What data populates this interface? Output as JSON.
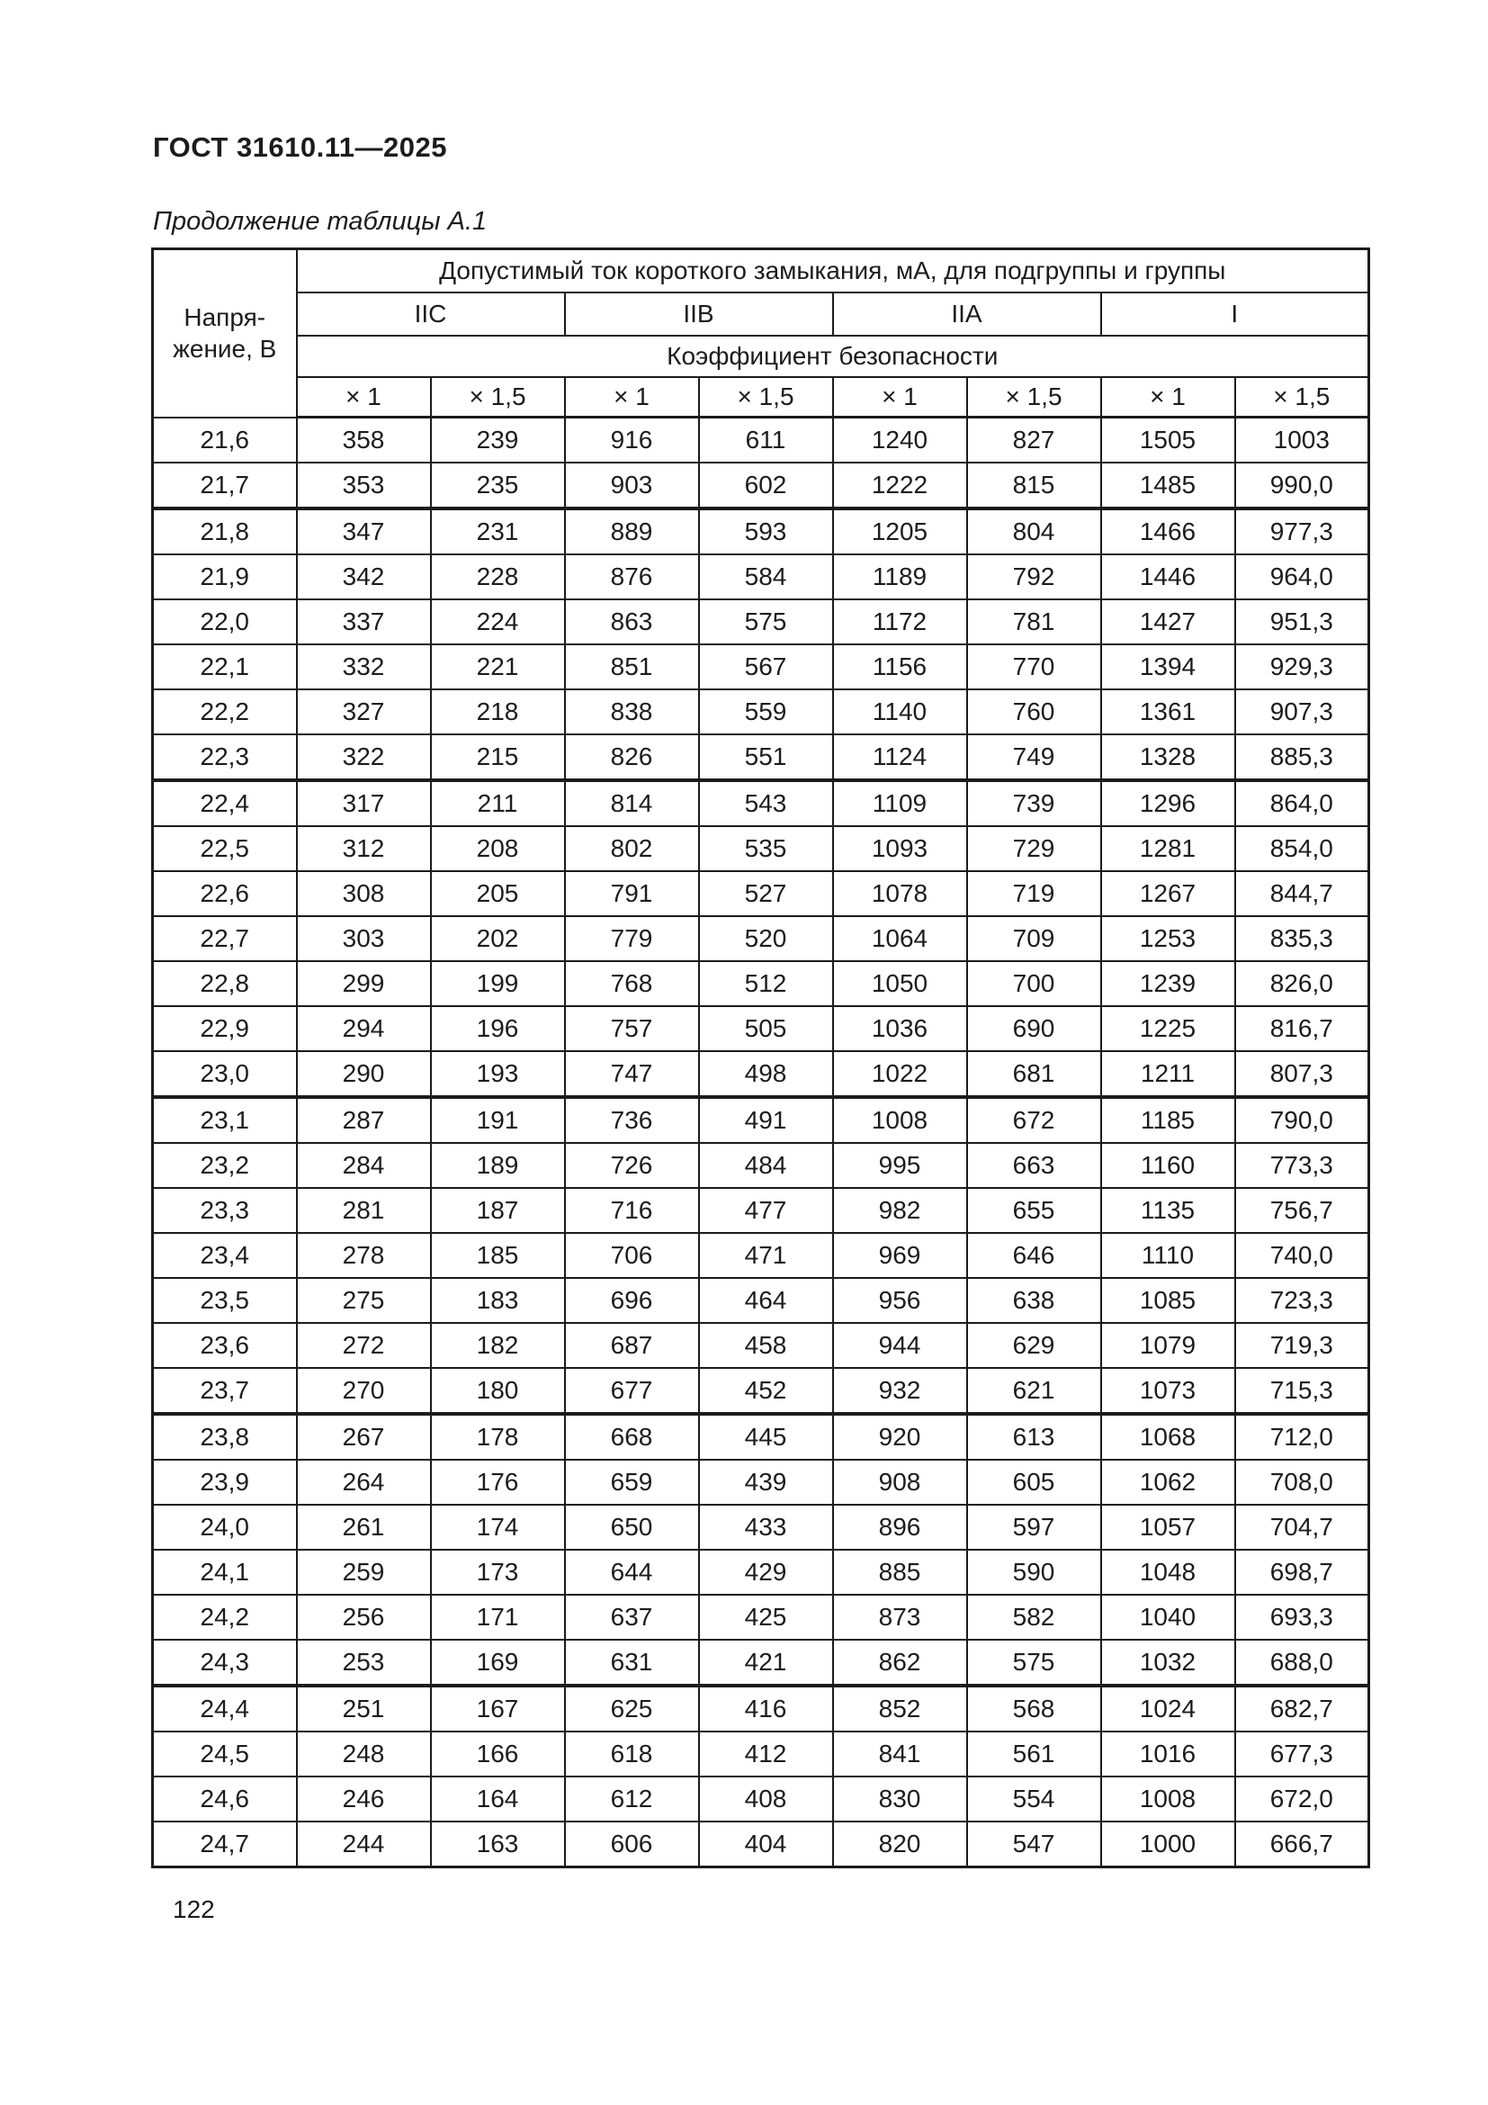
{
  "page": {
    "doc_number": "ГОСТ 31610.11—2025",
    "table_caption": "Продолжение таблицы А.1",
    "page_number": "122"
  },
  "table": {
    "voltage_header_line1": "Напря-",
    "voltage_header_line2": "жение, В",
    "current_header": "Допустимый ток короткого замыкания, мА, для подгруппы и группы",
    "groups": [
      "IIC",
      "IIB",
      "IIA",
      "I"
    ],
    "coefficient_header": "Коэффициент безопасности",
    "factor_labels": [
      "× 1",
      "× 1,5",
      "× 1",
      "× 1,5",
      "× 1",
      "× 1,5",
      "× 1",
      "× 1,5"
    ],
    "rows": [
      {
        "v": "21,6",
        "c": [
          "358",
          "239",
          "916",
          "611",
          "1240",
          "827",
          "1505",
          "1003"
        ]
      },
      {
        "v": "21,7",
        "c": [
          "353",
          "235",
          "903",
          "602",
          "1222",
          "815",
          "1485",
          "990,0"
        ],
        "thick_bottom": true
      },
      {
        "v": "21,8",
        "c": [
          "347",
          "231",
          "889",
          "593",
          "1205",
          "804",
          "1466",
          "977,3"
        ]
      },
      {
        "v": "21,9",
        "c": [
          "342",
          "228",
          "876",
          "584",
          "1189",
          "792",
          "1446",
          "964,0"
        ]
      },
      {
        "v": "22,0",
        "c": [
          "337",
          "224",
          "863",
          "575",
          "1172",
          "781",
          "1427",
          "951,3"
        ]
      },
      {
        "v": "22,1",
        "c": [
          "332",
          "221",
          "851",
          "567",
          "1156",
          "770",
          "1394",
          "929,3"
        ]
      },
      {
        "v": "22,2",
        "c": [
          "327",
          "218",
          "838",
          "559",
          "1140",
          "760",
          "1361",
          "907,3"
        ]
      },
      {
        "v": "22,3",
        "c": [
          "322",
          "215",
          "826",
          "551",
          "1124",
          "749",
          "1328",
          "885,3"
        ],
        "thick_bottom": true
      },
      {
        "v": "22,4",
        "c": [
          "317",
          "211",
          "814",
          "543",
          "1109",
          "739",
          "1296",
          "864,0"
        ]
      },
      {
        "v": "22,5",
        "c": [
          "312",
          "208",
          "802",
          "535",
          "1093",
          "729",
          "1281",
          "854,0"
        ]
      },
      {
        "v": "22,6",
        "c": [
          "308",
          "205",
          "791",
          "527",
          "1078",
          "719",
          "1267",
          "844,7"
        ]
      },
      {
        "v": "22,7",
        "c": [
          "303",
          "202",
          "779",
          "520",
          "1064",
          "709",
          "1253",
          "835,3"
        ]
      },
      {
        "v": "22,8",
        "c": [
          "299",
          "199",
          "768",
          "512",
          "1050",
          "700",
          "1239",
          "826,0"
        ]
      },
      {
        "v": "22,9",
        "c": [
          "294",
          "196",
          "757",
          "505",
          "1036",
          "690",
          "1225",
          "816,7"
        ]
      },
      {
        "v": "23,0",
        "c": [
          "290",
          "193",
          "747",
          "498",
          "1022",
          "681",
          "1211",
          "807,3"
        ],
        "thick_bottom": true
      },
      {
        "v": "23,1",
        "c": [
          "287",
          "191",
          "736",
          "491",
          "1008",
          "672",
          "1185",
          "790,0"
        ]
      },
      {
        "v": "23,2",
        "c": [
          "284",
          "189",
          "726",
          "484",
          "995",
          "663",
          "1160",
          "773,3"
        ]
      },
      {
        "v": "23,3",
        "c": [
          "281",
          "187",
          "716",
          "477",
          "982",
          "655",
          "1135",
          "756,7"
        ]
      },
      {
        "v": "23,4",
        "c": [
          "278",
          "185",
          "706",
          "471",
          "969",
          "646",
          "1110",
          "740,0"
        ]
      },
      {
        "v": "23,5",
        "c": [
          "275",
          "183",
          "696",
          "464",
          "956",
          "638",
          "1085",
          "723,3"
        ]
      },
      {
        "v": "23,6",
        "c": [
          "272",
          "182",
          "687",
          "458",
          "944",
          "629",
          "1079",
          "719,3"
        ]
      },
      {
        "v": "23,7",
        "c": [
          "270",
          "180",
          "677",
          "452",
          "932",
          "621",
          "1073",
          "715,3"
        ],
        "thick_bottom": true
      },
      {
        "v": "23,8",
        "c": [
          "267",
          "178",
          "668",
          "445",
          "920",
          "613",
          "1068",
          "712,0"
        ]
      },
      {
        "v": "23,9",
        "c": [
          "264",
          "176",
          "659",
          "439",
          "908",
          "605",
          "1062",
          "708,0"
        ]
      },
      {
        "v": "24,0",
        "c": [
          "261",
          "174",
          "650",
          "433",
          "896",
          "597",
          "1057",
          "704,7"
        ]
      },
      {
        "v": "24,1",
        "c": [
          "259",
          "173",
          "644",
          "429",
          "885",
          "590",
          "1048",
          "698,7"
        ]
      },
      {
        "v": "24,2",
        "c": [
          "256",
          "171",
          "637",
          "425",
          "873",
          "582",
          "1040",
          "693,3"
        ]
      },
      {
        "v": "24,3",
        "c": [
          "253",
          "169",
          "631",
          "421",
          "862",
          "575",
          "1032",
          "688,0"
        ],
        "thick_bottom": true
      },
      {
        "v": "24,4",
        "c": [
          "251",
          "167",
          "625",
          "416",
          "852",
          "568",
          "1024",
          "682,7"
        ]
      },
      {
        "v": "24,5",
        "c": [
          "248",
          "166",
          "618",
          "412",
          "841",
          "561",
          "1016",
          "677,3"
        ]
      },
      {
        "v": "24,6",
        "c": [
          "246",
          "164",
          "612",
          "408",
          "830",
          "554",
          "1008",
          "672,0"
        ]
      },
      {
        "v": "24,7",
        "c": [
          "244",
          "163",
          "606",
          "404",
          "820",
          "547",
          "1000",
          "666,7"
        ]
      }
    ]
  }
}
